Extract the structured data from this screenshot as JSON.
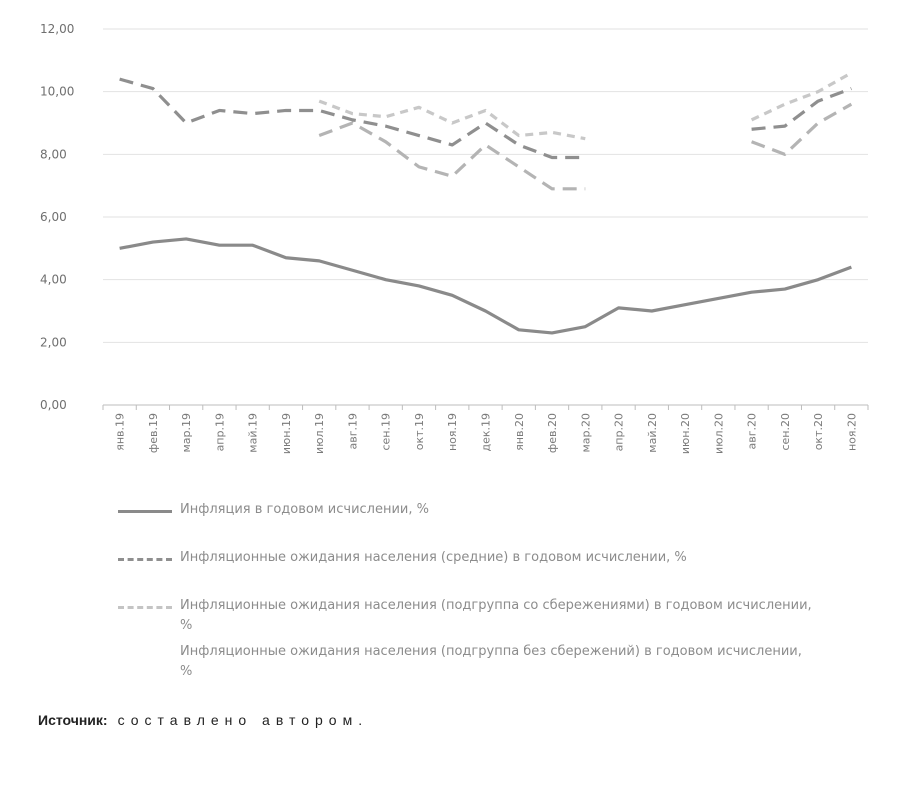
{
  "chart_data": {
    "type": "line",
    "categories": [
      "янв.19",
      "фев.19",
      "мар.19",
      "апр.19",
      "май.19",
      "июн.19",
      "июл.19",
      "авг.19",
      "сен.19",
      "окт.19",
      "ноя.19",
      "дек.19",
      "янв.20",
      "фев.20",
      "мар.20",
      "апр.20",
      "май.20",
      "июн.20",
      "июл.20",
      "авг.20",
      "сен.20",
      "окт.20",
      "ноя.20"
    ],
    "ylim": [
      0,
      12
    ],
    "y_ticks": [
      "0,00",
      "2,00",
      "4,00",
      "6,00",
      "8,00",
      "10,00",
      "12,00"
    ],
    "grid": true,
    "series": [
      {
        "name": "Инфляция в годовом исчислении, %",
        "style": "solid",
        "color": "#8a8a8a",
        "values": [
          5.0,
          5.2,
          5.3,
          5.1,
          5.1,
          4.7,
          4.6,
          4.3,
          4.0,
          3.8,
          3.5,
          3.0,
          2.4,
          2.3,
          2.5,
          3.1,
          3.0,
          3.2,
          3.4,
          3.6,
          3.7,
          4.0,
          4.4
        ]
      },
      {
        "name": "Инфляционные ожидания населения (средние) в годовом исчислении, %",
        "style": "longdash",
        "color": "#8f8f8f",
        "values": [
          10.4,
          10.1,
          9.0,
          9.4,
          9.3,
          9.4,
          9.4,
          9.1,
          8.9,
          8.6,
          8.3,
          9.0,
          8.3,
          7.9,
          7.9,
          null,
          null,
          null,
          null,
          8.8,
          8.9,
          9.7,
          10.1
        ]
      },
      {
        "name": "Инфляционные ожидания населения (подгруппа со сбережениями) в годовом исчислении, %",
        "style": "shortdash",
        "color": "#c8c8c8",
        "values": [
          null,
          null,
          null,
          null,
          null,
          null,
          9.7,
          9.3,
          9.2,
          9.5,
          9.0,
          9.4,
          8.6,
          8.7,
          8.5,
          null,
          null,
          null,
          null,
          9.1,
          9.6,
          10.0,
          10.6
        ]
      },
      {
        "name": "Инфляционные ожидания населения (подгруппа без сбережений) в годовом исчислении, %",
        "style": "longdash",
        "color": "#b4b4b4",
        "values": [
          null,
          null,
          null,
          null,
          null,
          null,
          8.6,
          9.0,
          8.4,
          7.6,
          7.3,
          8.3,
          7.6,
          6.9,
          6.9,
          null,
          null,
          null,
          null,
          8.4,
          8.0,
          9.0,
          9.6
        ]
      }
    ]
  },
  "legend": {
    "items": [
      "Инфляция в годовом исчислении, %",
      "Инфляционные ожидания населения (средние) в годовом исчислении, %",
      "Инфляционные ожидания населения (подгруппа со сбережениями) в годовом исчислении, %",
      "Инфляционные ожидания населения (подгруппа без сбережений) в годовом исчислении, %"
    ]
  },
  "source": {
    "label": "Источник:",
    "text": "составлено автором."
  }
}
